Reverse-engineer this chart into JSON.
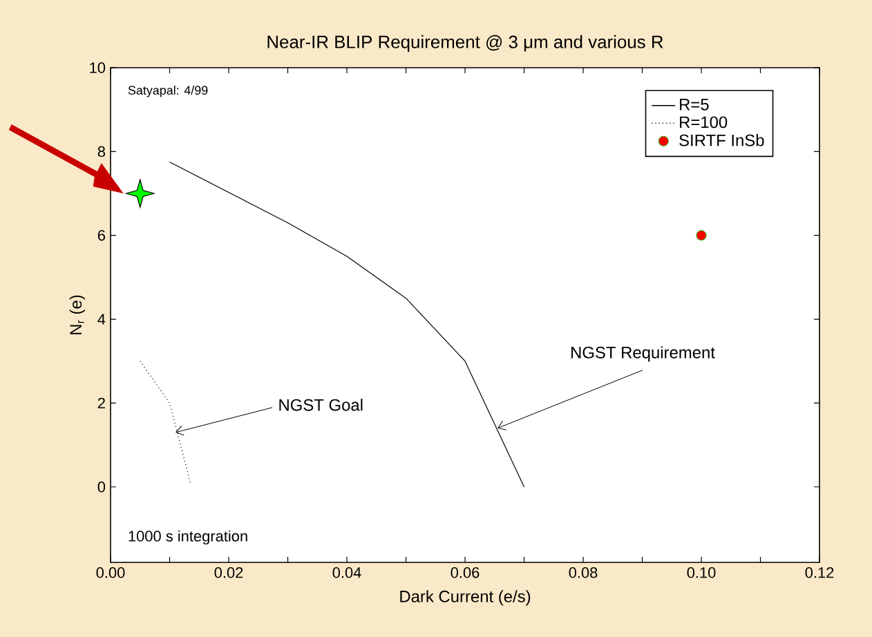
{
  "chart_data": {
    "type": "line",
    "title": "Near-IR BLIP Requirement @ 3 μm and various R",
    "xlabel": "Dark Current (e/s)",
    "ylabel": "N$_{r}$ (e)",
    "xlim": [
      0,
      0.12
    ],
    "ylim": [
      -1.8,
      10
    ],
    "xticks": [
      {
        "value": 0,
        "label": "0.00"
      },
      {
        "value": 0.01,
        "label": null
      },
      {
        "value": 0.02,
        "label": "0.02"
      },
      {
        "value": 0.03,
        "label": null
      },
      {
        "value": 0.04,
        "label": "0.04"
      },
      {
        "value": 0.05,
        "label": null
      },
      {
        "value": 0.06,
        "label": "0.06"
      },
      {
        "value": 0.07,
        "label": null
      },
      {
        "value": 0.08,
        "label": "0.08"
      },
      {
        "value": 0.09,
        "label": null
      },
      {
        "value": 0.1,
        "label": "0.10"
      },
      {
        "value": 0.11,
        "label": null
      },
      {
        "value": 0.12,
        "label": "0.12"
      }
    ],
    "yticks": [
      0,
      2,
      4,
      6,
      8,
      10
    ],
    "grid": false,
    "legend": "top right",
    "series": [
      {
        "name": "R=5",
        "color": "#000000",
        "line_style": "solid",
        "marker": "none",
        "x": [
          0.01,
          0.03,
          0.04,
          0.05,
          0.06,
          0.07
        ],
        "values": [
          7.75,
          6.3,
          5.5,
          4.5,
          3.0,
          0.0
        ]
      },
      {
        "name": "R=100",
        "color": "#000000",
        "line_style": "dotted",
        "marker": "none",
        "x": [
          0.005,
          0.01,
          0.0135
        ],
        "values": [
          3.0,
          2.0,
          0.1
        ]
      },
      {
        "name": "SIRTF InSb",
        "type": "scatter",
        "color": "#ff0000",
        "marker": "circle",
        "x": [
          0.1
        ],
        "values": [
          6
        ]
      },
      {
        "type": "scatter",
        "color": "#00ff00",
        "marker": "star",
        "x": [
          0.005
        ],
        "values": [
          7
        ]
      }
    ],
    "annotations": [
      "Satyapal: 4/99",
      "1000 s integration",
      {
        "text": "NGST Goal",
        "x": 0.011,
        "y": 1.3
      },
      {
        "text": "NGST Requirement",
        "x": 0.0655,
        "y": 1.4
      }
    ]
  }
}
